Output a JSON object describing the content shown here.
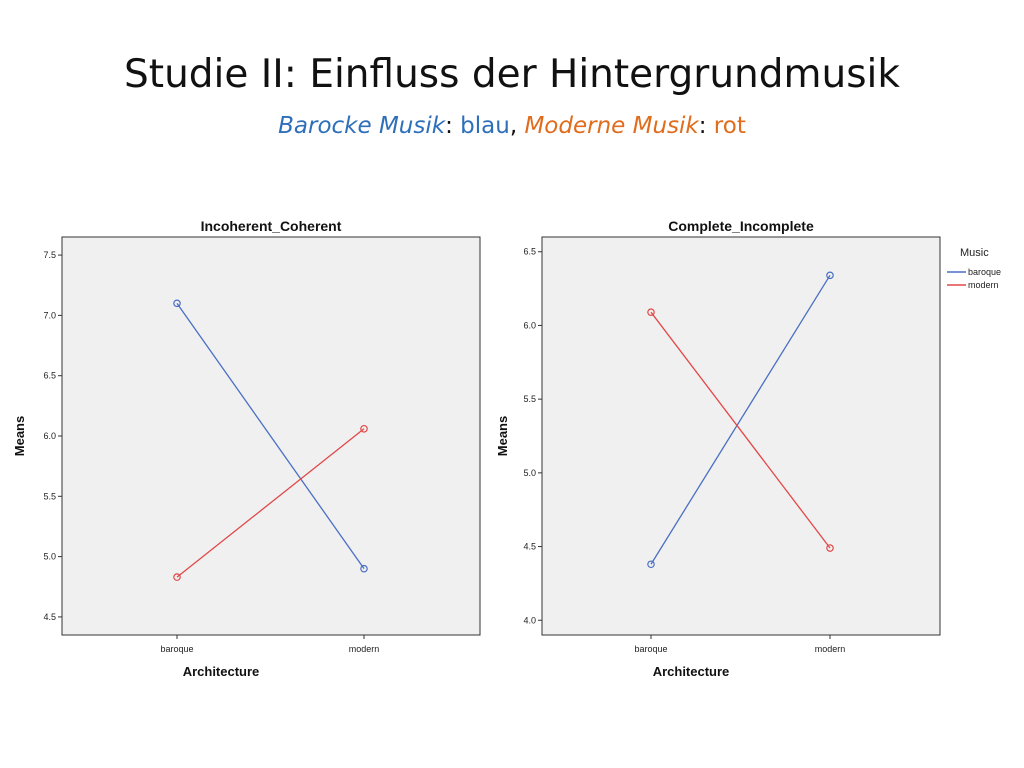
{
  "slide": {
    "title": "Studie II: Einfluss der Hintergrundmusik",
    "subtitle": {
      "baroque_label": "Barocke Musik",
      "baroque_color_word": "blau",
      "modern_label": "Moderne Musik",
      "modern_color_word": "rot",
      "sep1": ": ",
      "sep2": ", ",
      "sep3": ": "
    }
  },
  "colors": {
    "baroque": "#4a6fc3",
    "modern": "#e24848",
    "plot_bg": "#f0f0f0",
    "subtitle_blue": "#2e6fba",
    "subtitle_orange": "#e06c1c"
  },
  "legend": {
    "title": "Music",
    "items": [
      "baroque",
      "modern"
    ]
  },
  "chart_data": [
    {
      "type": "line",
      "title": "Incoherent_Coherent",
      "xlabel": "Architecture",
      "ylabel": "Means",
      "categories": [
        "baroque",
        "modern"
      ],
      "ylim": [
        4.35,
        7.65
      ],
      "yticks": [
        4.5,
        5.0,
        5.5,
        6.0,
        6.5,
        7.0,
        7.5
      ],
      "ytick_labels": [
        "4.5",
        "5.0",
        "5.5",
        "6.0",
        "6.5",
        "7.0",
        "7.5"
      ],
      "grid": false,
      "series": [
        {
          "name": "baroque",
          "values": [
            7.1,
            4.9
          ]
        },
        {
          "name": "modern",
          "values": [
            4.83,
            6.06
          ]
        }
      ]
    },
    {
      "type": "line",
      "title": "Complete_Incomplete",
      "xlabel": "Architecture",
      "ylabel": "Means",
      "categories": [
        "baroque",
        "modern"
      ],
      "ylim": [
        3.9,
        6.6
      ],
      "yticks": [
        4.0,
        4.5,
        5.0,
        5.5,
        6.0,
        6.5
      ],
      "ytick_labels": [
        "4.0",
        "4.5",
        "5.0",
        "5.5",
        "6.0",
        "6.5"
      ],
      "grid": false,
      "legend_position": "right",
      "series": [
        {
          "name": "baroque",
          "values": [
            4.38,
            6.34
          ]
        },
        {
          "name": "modern",
          "values": [
            6.09,
            4.49
          ]
        }
      ]
    }
  ]
}
